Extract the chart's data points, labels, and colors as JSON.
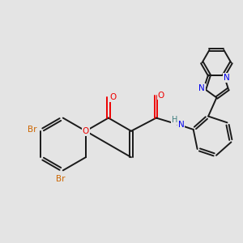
{
  "bg_color": "#e4e4e4",
  "bond_color": "#1a1a1a",
  "nitrogen_color": "#0000ee",
  "oxygen_color": "#ee0000",
  "bromine_color": "#cc6600",
  "nh_n_color": "#0000ee",
  "nh_h_color": "#408080",
  "lw": 1.4,
  "dbo": 0.065,
  "figsize": [
    3.0,
    3.0
  ],
  "dpi": 100,
  "xlim": [
    0,
    10
  ],
  "ylim": [
    0,
    10
  ]
}
